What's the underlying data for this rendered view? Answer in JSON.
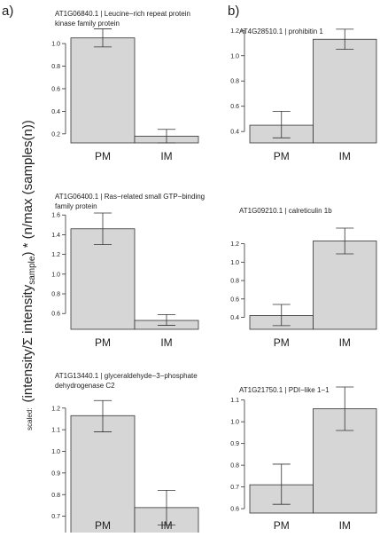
{
  "panel_labels": {
    "a": "a)",
    "b": "b)"
  },
  "ylabel": {
    "prefix": "scaled:",
    "main": "(intensity/Σ intensity",
    "sub": "sample",
    "rest": ") * (n/max (samples(n))"
  },
  "colors": {
    "bar_fill": "#d6d6d6",
    "bar_stroke": "#333333",
    "axis": "#333333"
  },
  "chart_data": [
    {
      "type": "bar",
      "title": [
        "AT1G06840.1 | Leucine−rich repeat protein",
        "kinase family protein"
      ],
      "categories": [
        "PM",
        "IM"
      ],
      "values": [
        1.05,
        0.18
      ],
      "error_low": [
        0.97,
        0.12
      ],
      "error_high": [
        1.13,
        0.24
      ],
      "ylim": [
        0.12,
        1.15
      ],
      "yticks": [
        0.2,
        0.4,
        0.6,
        0.8,
        1.0
      ],
      "ytick_labels": [
        "0.2",
        "0.4",
        "0.6",
        "0.8",
        "1.0"
      ],
      "xlabel": "",
      "ylabel": "",
      "grid": false
    },
    {
      "type": "bar",
      "title": [
        "AT4G28510.1 | prohibitin 1"
      ],
      "categories": [
        "PM",
        "IM"
      ],
      "values": [
        0.45,
        1.13
      ],
      "error_low": [
        0.35,
        1.05
      ],
      "error_high": [
        0.56,
        1.21
      ],
      "ylim": [
        0.31,
        1.23
      ],
      "yticks": [
        0.4,
        0.6,
        0.8,
        1.0,
        1.2
      ],
      "ytick_labels": [
        "0.4",
        "0.6",
        "0.8",
        "1.0",
        "1.2"
      ],
      "xlabel": "",
      "ylabel": "",
      "grid": false
    },
    {
      "type": "bar",
      "title": [
        "AT1G06400.1 | Ras−related small GTP−binding",
        "family protein"
      ],
      "categories": [
        "PM",
        "IM"
      ],
      "values": [
        1.46,
        0.53
      ],
      "error_low": [
        1.3,
        0.48
      ],
      "error_high": [
        1.62,
        0.59
      ],
      "ylim": [
        0.44,
        1.62
      ],
      "yticks": [
        0.6,
        0.8,
        1.0,
        1.2,
        1.4,
        1.6
      ],
      "ytick_labels": [
        "0.6",
        "0.8",
        "1.0",
        "1.2",
        "1.4",
        "1.6"
      ],
      "xlabel": "",
      "ylabel": "",
      "grid": false
    },
    {
      "type": "bar",
      "title": [
        "AT1G09210.1 | calreticulin 1b"
      ],
      "categories": [
        "PM",
        "IM"
      ],
      "values": [
        0.42,
        1.23
      ],
      "error_low": [
        0.31,
        1.09
      ],
      "error_high": [
        0.54,
        1.37
      ],
      "ylim": [
        0.27,
        1.37
      ],
      "yticks": [
        0.4,
        0.6,
        0.8,
        1.0,
        1.2
      ],
      "ytick_labels": [
        "0.4",
        "0.6",
        "0.8",
        "1.0",
        "1.2"
      ],
      "xlabel": "",
      "ylabel": "",
      "grid": false
    },
    {
      "type": "bar",
      "title": [
        "AT1G13440.1 | glyceraldehyde−3−phosphate",
        "dehydrogenase C2"
      ],
      "categories": [
        "PM",
        "IM"
      ],
      "values": [
        1.165,
        0.74
      ],
      "error_low": [
        1.09,
        0.66
      ],
      "error_high": [
        1.235,
        0.82
      ],
      "ylim": [
        0.6,
        1.24
      ],
      "yticks": [
        0.6,
        0.7,
        0.8,
        0.9,
        1.0,
        1.1,
        1.2
      ],
      "ytick_labels": [
        "0.6",
        "0.7",
        "0.8",
        "0.9",
        "1.0",
        "1.1",
        "1.2"
      ],
      "xlabel": "",
      "ylabel": "",
      "grid": false
    },
    {
      "type": "bar",
      "title": [
        "AT1G21750.1 | PDI−like 1−1"
      ],
      "categories": [
        "PM",
        "IM"
      ],
      "values": [
        0.71,
        1.06
      ],
      "error_low": [
        0.62,
        0.96
      ],
      "error_high": [
        0.805,
        1.16
      ],
      "ylim": [
        0.58,
        1.16
      ],
      "yticks": [
        0.6,
        0.7,
        0.8,
        0.9,
        1.0,
        1.1
      ],
      "ytick_labels": [
        "0.6",
        "0.7",
        "0.8",
        "0.9",
        "1.0",
        "1.1"
      ],
      "xlabel": "",
      "ylabel": "",
      "grid": false
    }
  ]
}
